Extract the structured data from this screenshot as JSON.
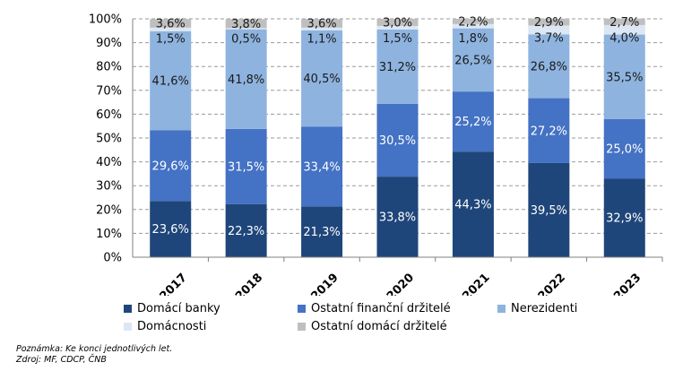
{
  "chart_data": {
    "type": "bar",
    "stacked": true,
    "categories": [
      "2017",
      "2018",
      "2019",
      "2020",
      "2021",
      "2022",
      "2023"
    ],
    "series": [
      {
        "name": "Domácí banky",
        "color": "#1f467a",
        "values": [
          23.6,
          22.3,
          21.3,
          33.8,
          44.3,
          39.5,
          32.9
        ],
        "labels": [
          "23,6%",
          "22,3%",
          "21,3%",
          "33,8%",
          "44,3%",
          "39,5%",
          "32,9%"
        ]
      },
      {
        "name": "Ostatní finanční držitelé",
        "color": "#4472c4",
        "values": [
          29.6,
          31.5,
          33.4,
          30.5,
          25.2,
          27.2,
          25.0
        ],
        "labels": [
          "29,6%",
          "31,5%",
          "33,4%",
          "30,5%",
          "25,2%",
          "27,2%",
          "25,0%"
        ]
      },
      {
        "name": "Nerezidenti",
        "color": "#8eb3df",
        "values": [
          41.6,
          41.8,
          40.5,
          31.2,
          26.5,
          26.8,
          35.5
        ],
        "labels": [
          "41,6%",
          "41,8%",
          "40,5%",
          "31,2%",
          "26,5%",
          "26,8%",
          "35,5%"
        ]
      },
      {
        "name": "Domácnosti",
        "color": "#dce7f4",
        "values": [
          1.5,
          0.5,
          1.1,
          1.5,
          1.8,
          3.7,
          4.0
        ],
        "labels": [
          "1,5%",
          "0,5%",
          "1,1%",
          "1,5%",
          "1,8%",
          "3,7%",
          "4,0%"
        ]
      },
      {
        "name": "Ostatní domácí držitelé",
        "color": "#bfbfbf",
        "values": [
          3.6,
          3.8,
          3.6,
          3.0,
          2.2,
          2.9,
          2.7
        ],
        "labels": [
          "3,6%",
          "3,8%",
          "3,6%",
          "3,0%",
          "2,2%",
          "2,9%",
          "2,7%"
        ]
      }
    ],
    "yticks": [
      "0%",
      "10%",
      "20%",
      "30%",
      "40%",
      "50%",
      "60%",
      "70%",
      "80%",
      "90%",
      "100%"
    ],
    "ylim": [
      0,
      100
    ],
    "grid": true,
    "legend_position": "bottom"
  },
  "notes": {
    "line1": "Poznámka: Ke konci jednotlivých let.",
    "line2": "Zdroj: MF, CDCP, ČNB"
  }
}
